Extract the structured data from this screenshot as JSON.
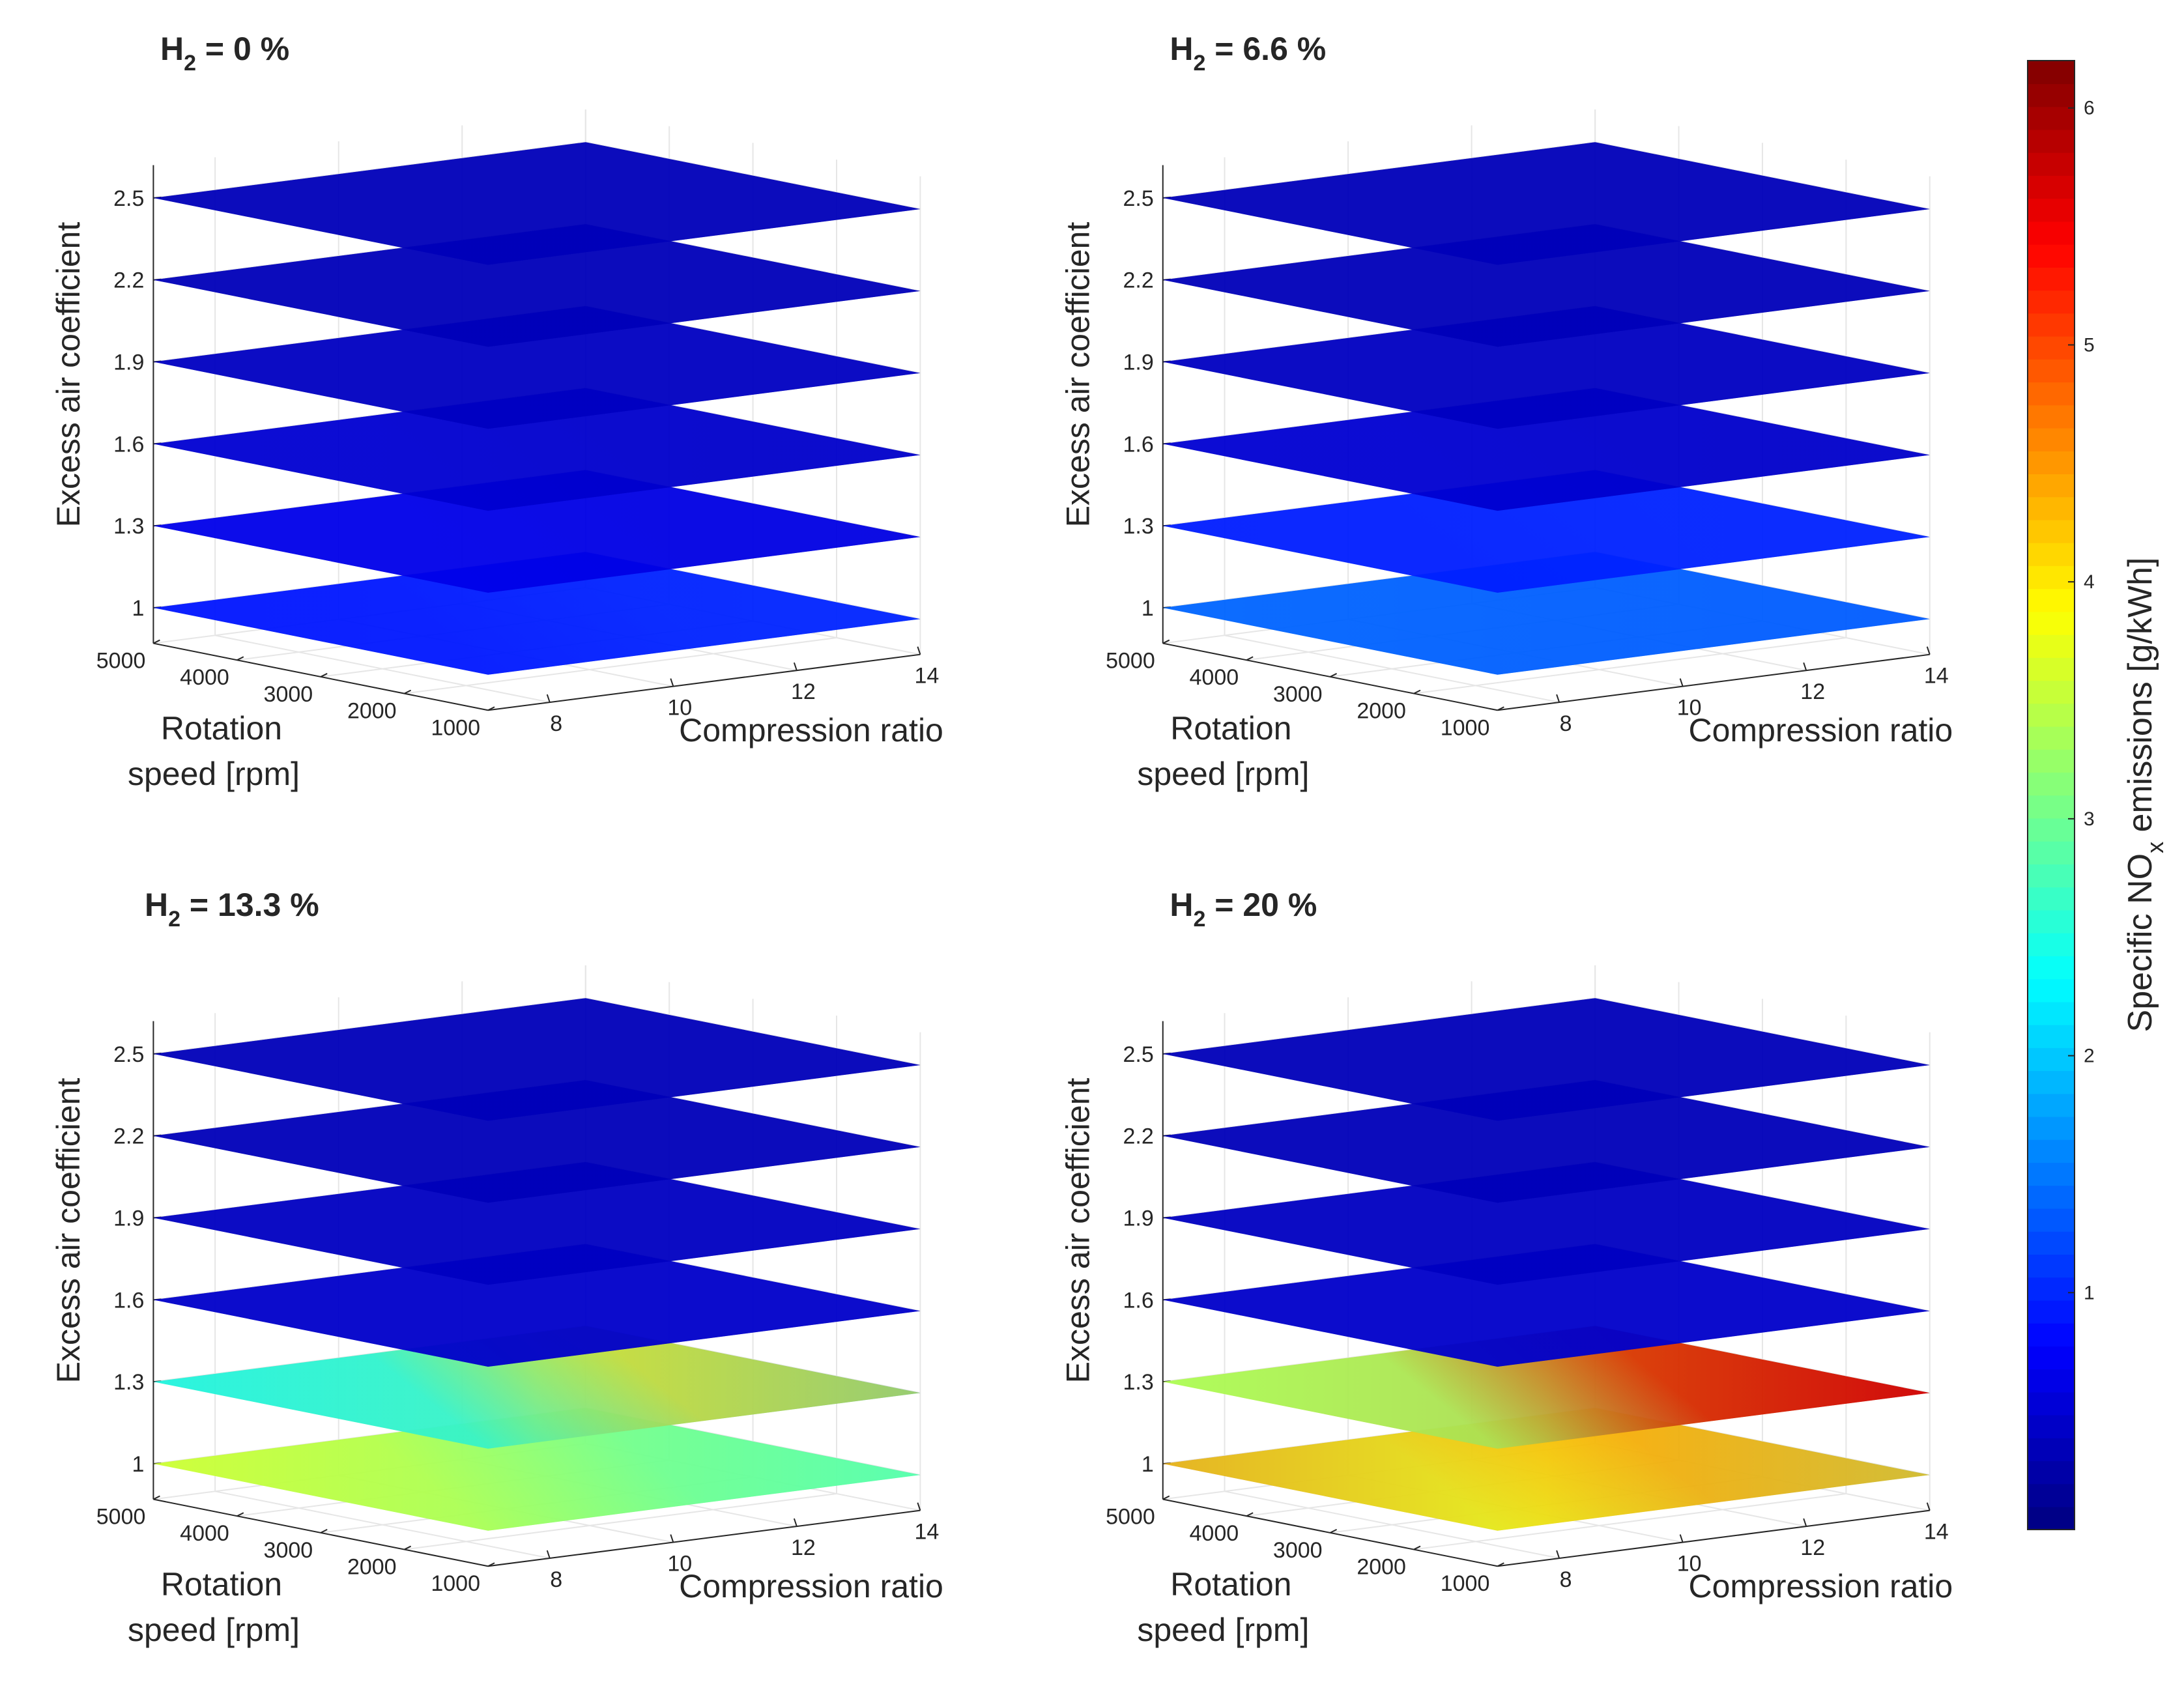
{
  "figure": {
    "colorbar": {
      "label_prefix": "Specific NO",
      "label_sub": "x",
      "label_suffix": " emissions [g/kWh]",
      "min": 0,
      "max": 6.2,
      "ticks": [
        "1",
        "2",
        "3",
        "4",
        "5",
        "6"
      ],
      "colormap": "jet"
    }
  },
  "chart_data": [
    {
      "type": "surface3d",
      "title_prefix": "H",
      "title_sub": "2",
      "title_suffix": " = 0 %",
      "h2_percent": 0,
      "xlabel": "Compression ratio",
      "ylabel_line1": "Rotation",
      "ylabel_line2": "speed [rpm]",
      "zlabel": "Excess air coefficient",
      "x_ticks": [
        "8",
        "10",
        "12",
        "14"
      ],
      "y_ticks": [
        "1000",
        "2000",
        "3000",
        "4000",
        "5000"
      ],
      "z_ticks": [
        "1",
        "1.3",
        "1.6",
        "1.9",
        "2.2",
        "2.5"
      ],
      "xlim": [
        7,
        14
      ],
      "ylim": [
        1000,
        5000
      ],
      "zlim": [
        1,
        2.5
      ],
      "layers": [
        {
          "lambda": 1.0,
          "corners": [
            0.9,
            0.9,
            1.0,
            1.0
          ]
        },
        {
          "lambda": 1.3,
          "corners": [
            0.65,
            0.65,
            0.6,
            0.6
          ]
        },
        {
          "lambda": 1.6,
          "corners": [
            0.5,
            0.5,
            0.45,
            0.45
          ]
        },
        {
          "lambda": 1.9,
          "corners": [
            0.4,
            0.4,
            0.4,
            0.4
          ]
        },
        {
          "lambda": 2.2,
          "corners": [
            0.35,
            0.35,
            0.35,
            0.35
          ]
        },
        {
          "lambda": 2.5,
          "corners": [
            0.35,
            0.35,
            0.35,
            0.35
          ]
        }
      ]
    },
    {
      "type": "surface3d",
      "title_prefix": "H",
      "title_sub": "2",
      "title_suffix": " = 6.6 %",
      "h2_percent": 6.6,
      "xlabel": "Compression ratio",
      "ylabel_line1": "Rotation",
      "ylabel_line2": "speed [rpm]",
      "zlabel": "Excess air coefficient",
      "x_ticks": [
        "8",
        "10",
        "12",
        "14"
      ],
      "y_ticks": [
        "1000",
        "2000",
        "3000",
        "4000",
        "5000"
      ],
      "z_ticks": [
        "1",
        "1.3",
        "1.6",
        "1.9",
        "2.2",
        "2.5"
      ],
      "xlim": [
        7,
        14
      ],
      "ylim": [
        1000,
        5000
      ],
      "zlim": [
        1,
        2.5
      ],
      "layers": [
        {
          "lambda": 1.0,
          "corners": [
            1.45,
            1.35,
            1.3,
            1.35
          ]
        },
        {
          "lambda": 1.3,
          "corners": [
            0.95,
            0.95,
            0.95,
            1.0
          ]
        },
        {
          "lambda": 1.6,
          "corners": [
            0.5,
            0.5,
            0.45,
            0.45
          ]
        },
        {
          "lambda": 1.9,
          "corners": [
            0.4,
            0.4,
            0.4,
            0.4
          ]
        },
        {
          "lambda": 2.2,
          "corners": [
            0.35,
            0.35,
            0.35,
            0.35
          ]
        },
        {
          "lambda": 2.5,
          "corners": [
            0.35,
            0.35,
            0.35,
            0.35
          ]
        }
      ]
    },
    {
      "type": "surface3d",
      "title_prefix": "H",
      "title_sub": "2",
      "title_suffix": " = 13.3 %",
      "h2_percent": 13.3,
      "xlabel": "Compression ratio",
      "ylabel_line1": "Rotation",
      "ylabel_line2": "speed [rpm]",
      "zlabel": "Excess air coefficient",
      "x_ticks": [
        "8",
        "10",
        "12",
        "14"
      ],
      "y_ticks": [
        "1000",
        "2000",
        "3000",
        "4000",
        "5000"
      ],
      "z_ticks": [
        "1",
        "1.3",
        "1.6",
        "1.9",
        "2.2",
        "2.5"
      ],
      "xlim": [
        7,
        14
      ],
      "ylim": [
        1000,
        5000
      ],
      "zlim": [
        1,
        2.5
      ],
      "layers": [
        {
          "lambda": 1.0,
          "corners": [
            3.8,
            3.4,
            2.6,
            3.0
          ]
        },
        {
          "lambda": 1.3,
          "corners": [
            2.8,
            2.2,
            2.0,
            4.2
          ]
        },
        {
          "lambda": 1.6,
          "corners": [
            0.45,
            0.45,
            0.45,
            0.45
          ]
        },
        {
          "lambda": 1.9,
          "corners": [
            0.4,
            0.4,
            0.4,
            0.4
          ]
        },
        {
          "lambda": 2.2,
          "corners": [
            0.35,
            0.35,
            0.35,
            0.35
          ]
        },
        {
          "lambda": 2.5,
          "corners": [
            0.35,
            0.35,
            0.35,
            0.35
          ]
        }
      ]
    },
    {
      "type": "surface3d",
      "title_prefix": "H",
      "title_sub": "2",
      "title_suffix": " = 20 %",
      "h2_percent": 20,
      "xlabel": "Compression ratio",
      "ylabel_line1": "Rotation",
      "ylabel_line2": "speed [rpm]",
      "zlabel": "Excess air coefficient",
      "x_ticks": [
        "8",
        "10",
        "12",
        "14"
      ],
      "y_ticks": [
        "1000",
        "2000",
        "3000",
        "4000",
        "5000"
      ],
      "z_ticks": [
        "1",
        "1.3",
        "1.6",
        "1.9",
        "2.2",
        "2.5"
      ],
      "xlim": [
        7,
        14
      ],
      "ylim": [
        1000,
        5000
      ],
      "zlim": [
        1,
        2.5
      ],
      "layers": [
        {
          "lambda": 1.0,
          "corners": [
            5.0,
            3.6,
            3.2,
            4.6
          ]
        },
        {
          "lambda": 1.3,
          "corners": [
            3.9,
            3.0,
            5.6,
            5.8
          ]
        },
        {
          "lambda": 1.6,
          "corners": [
            0.45,
            0.45,
            0.45,
            0.45
          ]
        },
        {
          "lambda": 1.9,
          "corners": [
            0.4,
            0.4,
            0.4,
            0.4
          ]
        },
        {
          "lambda": 2.2,
          "corners": [
            0.35,
            0.35,
            0.35,
            0.35
          ]
        },
        {
          "lambda": 2.5,
          "corners": [
            0.35,
            0.35,
            0.35,
            0.35
          ]
        }
      ]
    }
  ]
}
